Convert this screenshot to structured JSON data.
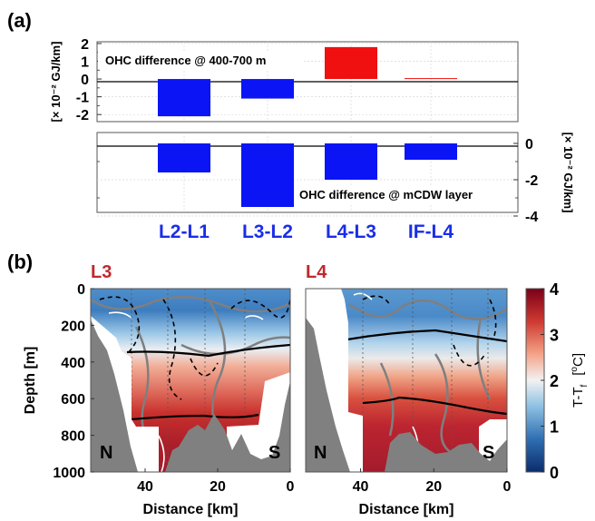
{
  "panel_labels": {
    "a": "(a)",
    "b": "(b)"
  },
  "colors": {
    "negative": "#0a14f5",
    "positive": "#f01010",
    "blue_label": "#1a2ee6",
    "red_label": "#c0282d",
    "seafloor": "#808080"
  },
  "chart_data": [
    {
      "type": "bar",
      "categories": [
        "L2-L1",
        "L3-L2",
        "L4-L3",
        "IF-L4"
      ],
      "panel": "a-top",
      "series": [
        {
          "values": [
            -2.1,
            -1.1,
            1.8,
            0.05
          ]
        }
      ],
      "annotation": "OHC difference @ 400-700 m",
      "ylabel": "[× 10⁻² GJ/km]",
      "ylim": [
        -2.4,
        2.1
      ],
      "yticks": [
        "2",
        "1",
        "0",
        "-1",
        "-2"
      ],
      "grid": true
    },
    {
      "type": "bar",
      "categories": [
        "L2-L1",
        "L3-L2",
        "L4-L3",
        "IF-L4"
      ],
      "panel": "a-bottom",
      "series": [
        {
          "values": [
            -1.6,
            -3.5,
            -2.0,
            -0.9
          ]
        }
      ],
      "annotation": "OHC difference @ mCDW layer",
      "ylabel": "[× 10⁻² GJ/km]",
      "ylim": [
        -3.8,
        0.6
      ],
      "yticks": [
        "0",
        "-2",
        "-4"
      ],
      "grid": true
    },
    {
      "type": "heatmap",
      "panel": "b",
      "sections": [
        {
          "name": "L3",
          "left_label": "N",
          "right_label": "S"
        },
        {
          "name": "L4",
          "left_label": "N",
          "right_label": "S"
        }
      ],
      "xlabel": "Distance [km]",
      "ylabel": "Depth [m]",
      "xlim": [
        55,
        0
      ],
      "ylim": [
        1000,
        0
      ],
      "xticks": [
        "40",
        "20",
        "0"
      ],
      "yticks": [
        "0",
        "200",
        "400",
        "600",
        "800",
        "1000"
      ],
      "colorbar": {
        "label": "T-T",
        "label_sub": "f",
        "unit_open": "[",
        "unit_sup": "o",
        "unit_close": "C]",
        "range": [
          0,
          4
        ],
        "ticks": [
          "0",
          "1",
          "2",
          "3",
          "4"
        ]
      }
    }
  ]
}
